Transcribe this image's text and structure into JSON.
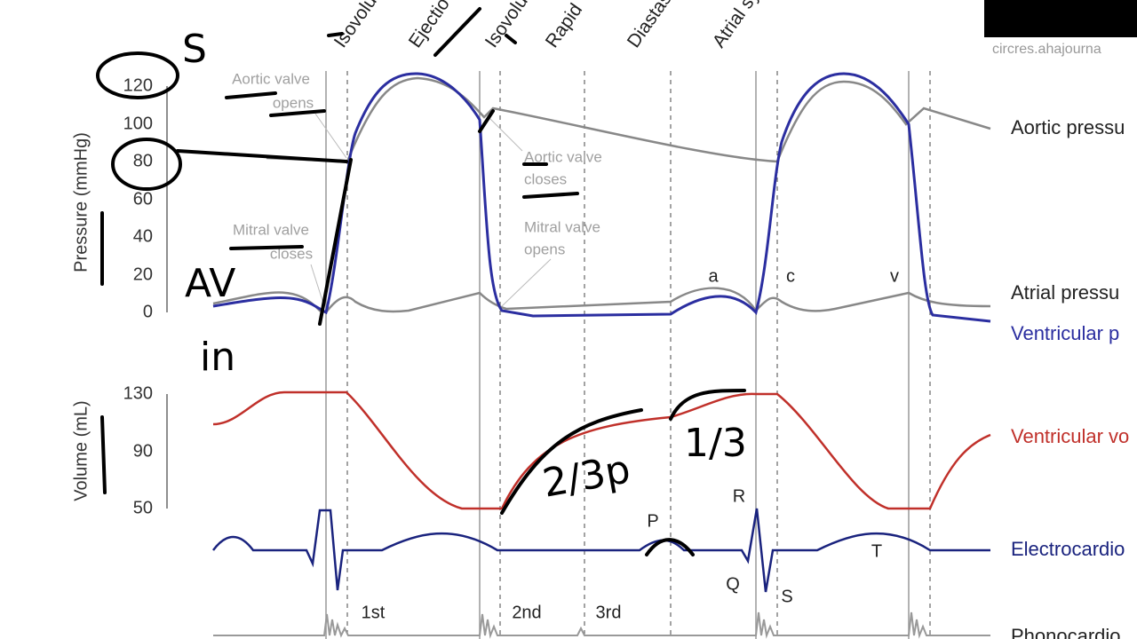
{
  "source": "circres.ahajourna",
  "phases": [
    "Isovolu",
    "Ejectio",
    "Isovolu",
    "Rapid",
    "Diastas",
    "Atrial sy"
  ],
  "pressure_axis": {
    "label": "Pressure (mmHg)",
    "ticks": [
      "0",
      "20",
      "40",
      "60",
      "80",
      "100",
      "120"
    ]
  },
  "volume_axis": {
    "label": "Volume (mL)",
    "ticks": [
      "50",
      "90",
      "130"
    ]
  },
  "traces": [
    "Aortic pressu",
    "Atrial pressu",
    "Ventricular p",
    "Ventricular vo",
    "Electrocardio",
    "Phonocardio"
  ],
  "events": [
    {
      "lines": [
        "Aortic valve",
        "opens"
      ]
    },
    {
      "lines": [
        "Mitral valve",
        "closes"
      ]
    },
    {
      "lines": [
        "Aortic valve",
        "closes"
      ]
    },
    {
      "lines": [
        "Mitral valve",
        "opens"
      ]
    }
  ],
  "waves": [
    "a",
    "c",
    "v",
    "P",
    "Q",
    "R",
    "S",
    "T"
  ],
  "heart_sounds": [
    "1st",
    "2nd",
    "3rd"
  ],
  "handwriting": [
    "S",
    "AV",
    "in",
    "2/3p",
    "1/3"
  ]
}
